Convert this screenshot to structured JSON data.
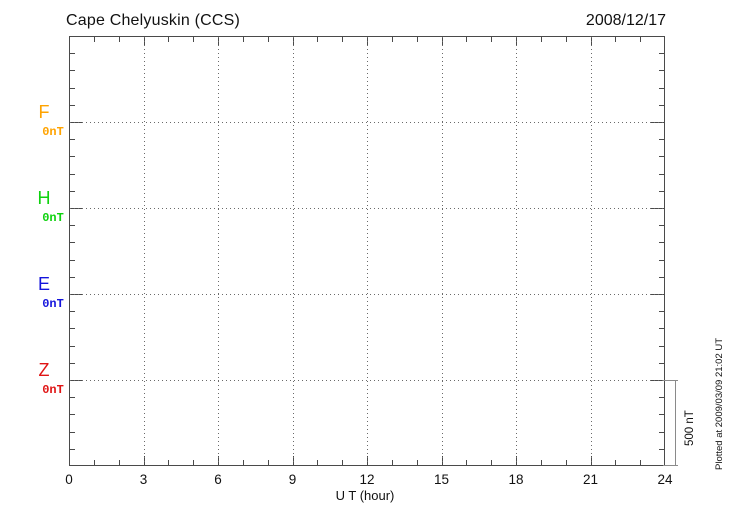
{
  "header": {
    "title": "Cape Chelyuskin (CCS)",
    "date": "2008/12/17"
  },
  "axis": {
    "xlabel": "U T (hour)",
    "x_tick_labels": [
      "0",
      "3",
      "6",
      "9",
      "12",
      "15",
      "18",
      "21",
      "24"
    ]
  },
  "components": [
    {
      "label": "F",
      "unit": "0nT",
      "color": "#FFA300"
    },
    {
      "label": "H",
      "unit": "0nT",
      "color": "#0ED20E"
    },
    {
      "label": "E",
      "unit": "0nT",
      "color": "#1414DC"
    },
    {
      "label": "Z",
      "unit": "0nT",
      "color": "#E01414"
    }
  ],
  "scale_bar": {
    "label": "500 nT"
  },
  "watermark": {
    "plotted_at": "Plotted at 2009/03/09 21:02 UT"
  },
  "chart_data": {
    "type": "line",
    "title": "Cape Chelyuskin (CCS)",
    "date": "2008/12/17",
    "xlabel": "U T (hour)",
    "xlim": [
      0,
      24
    ],
    "x_major_ticks": [
      0,
      3,
      6,
      9,
      12,
      15,
      18,
      21,
      24
    ],
    "x_minor_step_hours": 1,
    "y_unit": "nT",
    "y_minor_tick_nT": 100,
    "y_total_span_nT": 2500,
    "baseline_spacing_nT": 500,
    "scale_bar_nT": 500,
    "grid": true,
    "baselines": [
      {
        "name": "F",
        "baseline_label": "0nT",
        "color": "#FFA300"
      },
      {
        "name": "H",
        "baseline_label": "0nT",
        "color": "#0ED20E"
      },
      {
        "name": "E",
        "baseline_label": "0nT",
        "color": "#1414DC"
      },
      {
        "name": "Z",
        "baseline_label": "0nT",
        "color": "#E01414"
      }
    ],
    "series": [
      {
        "name": "F",
        "x": [],
        "values": []
      },
      {
        "name": "H",
        "x": [],
        "values": []
      },
      {
        "name": "E",
        "x": [],
        "values": []
      },
      {
        "name": "Z",
        "x": [],
        "values": []
      }
    ]
  }
}
